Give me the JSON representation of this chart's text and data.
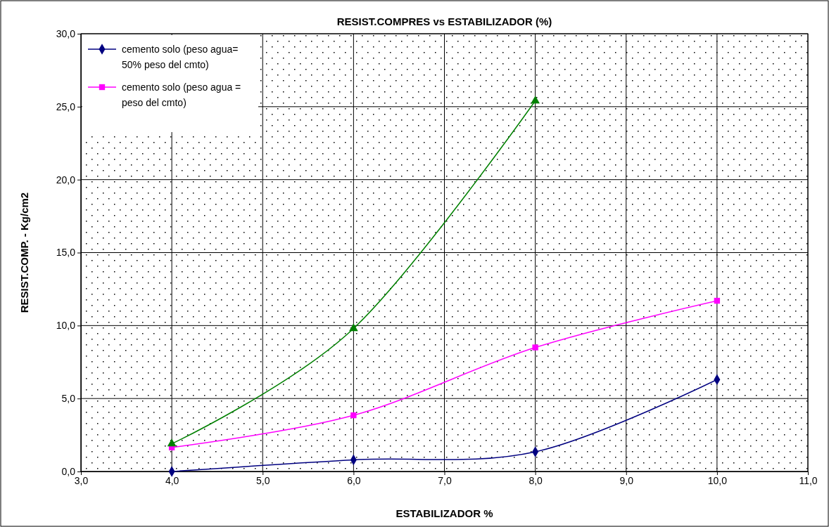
{
  "chart_data": {
    "type": "line",
    "title": "RESIST.COMPRES vs ESTABILIZADOR (%)",
    "xlabel": "ESTABILIZADOR %",
    "ylabel": "RESIST.COMP. - Kg/cm2",
    "xlim": [
      3,
      11
    ],
    "xticks": [
      {
        "value": 3,
        "label": "3,0"
      },
      {
        "value": 4,
        "label": "4,0"
      },
      {
        "value": 5,
        "label": "5,0"
      },
      {
        "value": 6,
        "label": "6,0"
      },
      {
        "value": 7,
        "label": "7,0"
      },
      {
        "value": 8,
        "label": "8,0"
      },
      {
        "value": 9,
        "label": "9,0"
      },
      {
        "value": 10,
        "label": "10,0"
      },
      {
        "value": 11,
        "label": "11,0"
      }
    ],
    "ylim": [
      0,
      30
    ],
    "yticks": [
      {
        "value": 0,
        "label": "0,0"
      },
      {
        "value": 5,
        "label": "5,0"
      },
      {
        "value": 10,
        "label": "10,0"
      },
      {
        "value": 15,
        "label": "15,0"
      },
      {
        "value": 20,
        "label": "20,0"
      },
      {
        "value": 25,
        "label": "25,0"
      },
      {
        "value": 30,
        "label": "30,0"
      }
    ],
    "grid": true,
    "legend": "top left",
    "series": [
      {
        "name": "cemento solo (peso agua= 50% peso del cmto)",
        "color": "#000080",
        "marker": "diamond",
        "x": [
          4,
          6,
          8,
          10
        ],
        "values": [
          0.0,
          0.8,
          1.35,
          6.3
        ]
      },
      {
        "name": "cemento solo (peso agua = peso del cmto)",
        "color": "#ff00ff",
        "marker": "square",
        "x": [
          4,
          6,
          8,
          10
        ],
        "values": [
          1.65,
          3.85,
          8.5,
          11.7
        ]
      },
      {
        "color": "#008000",
        "marker": "triangle",
        "x": [
          4,
          6,
          8
        ],
        "values": [
          1.9,
          9.8,
          25.4
        ]
      }
    ]
  }
}
